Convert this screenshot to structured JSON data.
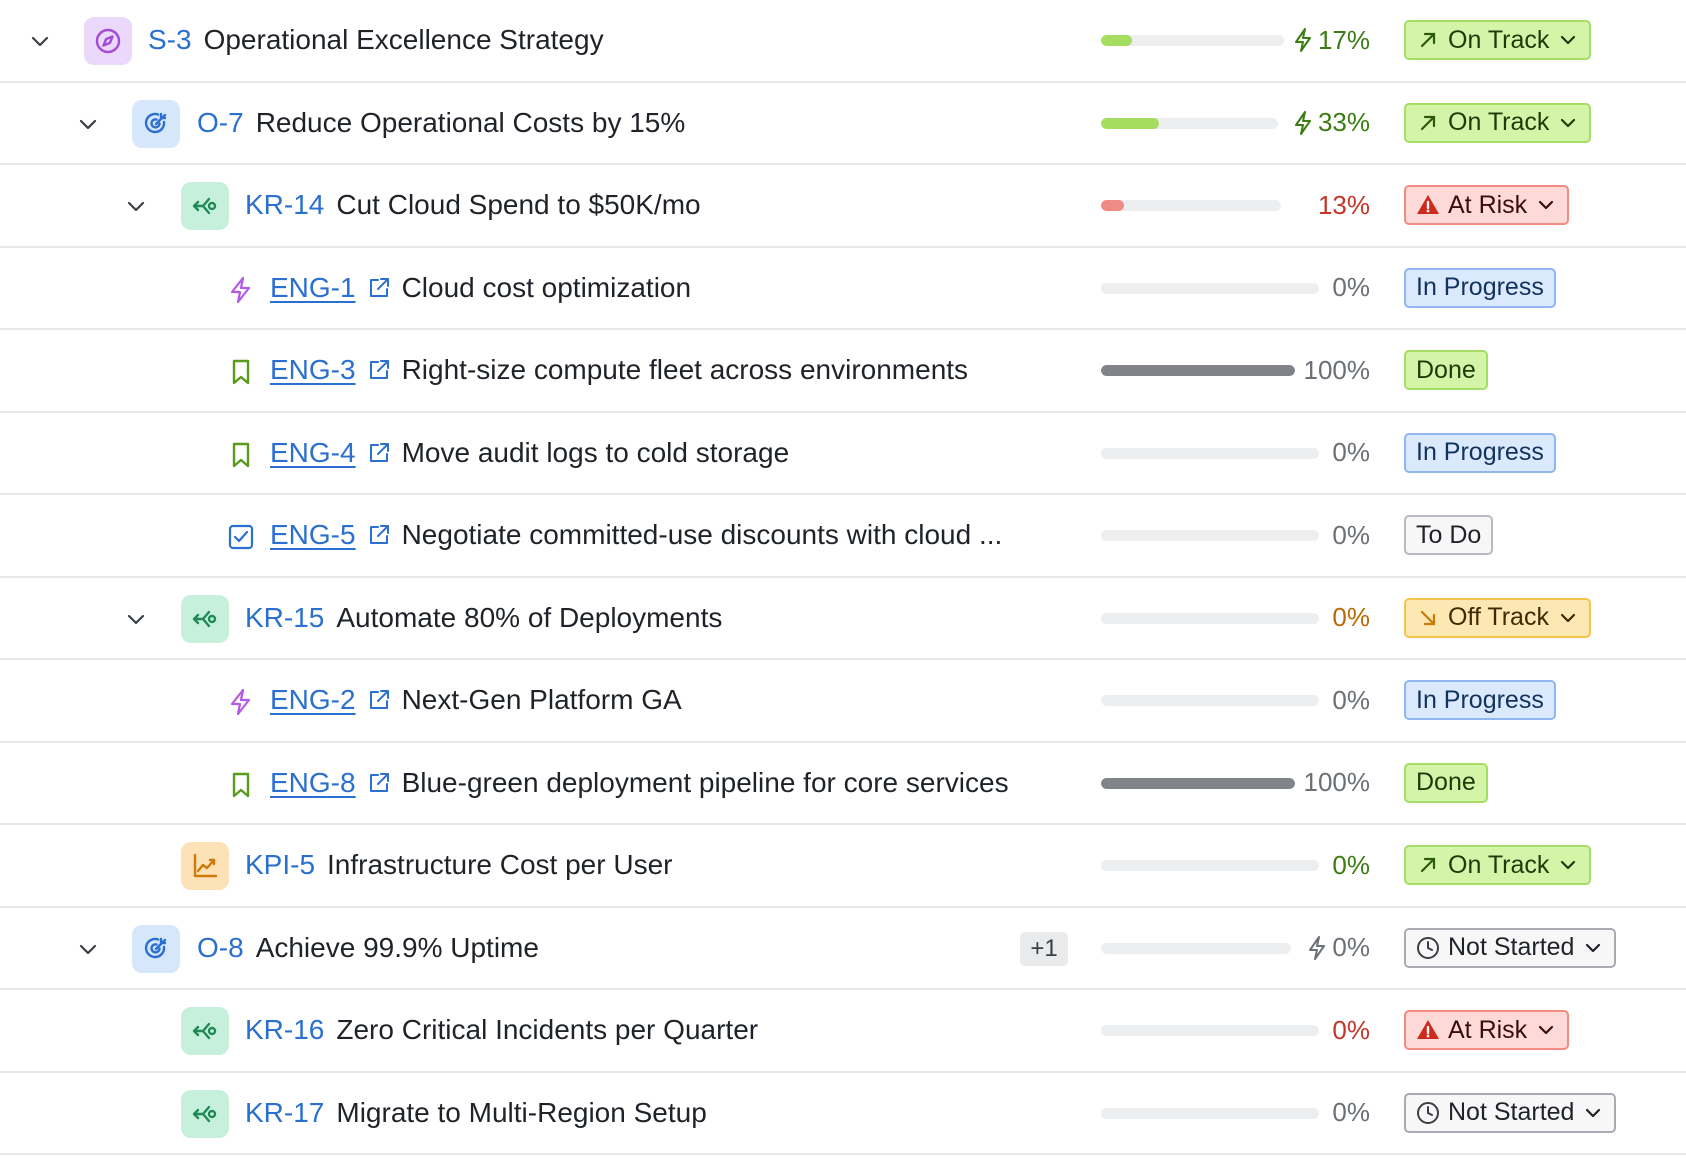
{
  "colors": {
    "key_link": "#2b6fd0",
    "progress_green": "#a4dd5f",
    "progress_red": "#f08a84",
    "progress_gray": "#808489",
    "progress_track": "#eceef0",
    "pct_green": "#3b7d12",
    "pct_red": "#c53629",
    "pct_orange": "#b86a05",
    "pct_gray": "#6b6f76"
  },
  "rows": [
    {
      "key": "S-3",
      "title": "Operational Excellence Strategy",
      "progress": 0.17,
      "percent": "17%",
      "status": "On Track",
      "icon": "compass-icon"
    },
    {
      "key": "O-7",
      "title": "Reduce Operational Costs by 15%",
      "progress": 0.33,
      "percent": "33%",
      "status": "On Track",
      "icon": "target-icon"
    },
    {
      "key": "KR-14",
      "title": "Cut Cloud Spend to $50K/mo",
      "progress": 0.13,
      "percent": "13%",
      "status": "At Risk",
      "icon": "key-result-icon"
    },
    {
      "key": "ENG-1",
      "title": "Cloud cost optimization",
      "progress": 0,
      "percent": "0%",
      "status": "In Progress",
      "icon": "epic-lightning-icon"
    },
    {
      "key": "ENG-3",
      "title": "Right-size compute fleet across environments",
      "progress": 1.0,
      "percent": "100%",
      "status": "Done",
      "icon": "story-bookmark-icon"
    },
    {
      "key": "ENG-4",
      "title": "Move audit logs to cold storage",
      "progress": 0,
      "percent": "0%",
      "status": "In Progress",
      "icon": "story-bookmark-icon"
    },
    {
      "key": "ENG-5",
      "title": "Negotiate committed-use discounts with cloud ...",
      "progress": 0,
      "percent": "0%",
      "status": "To Do",
      "icon": "task-checkbox-icon"
    },
    {
      "key": "KR-15",
      "title": "Automate 80% of Deployments",
      "progress": 0,
      "percent": "0%",
      "status": "Off Track",
      "icon": "key-result-icon"
    },
    {
      "key": "ENG-2",
      "title": "Next-Gen Platform GA",
      "progress": 0,
      "percent": "0%",
      "status": "In Progress",
      "icon": "epic-lightning-icon"
    },
    {
      "key": "ENG-8",
      "title": "Blue-green deployment pipeline for core services",
      "progress": 1.0,
      "percent": "100%",
      "status": "Done",
      "icon": "story-bookmark-icon"
    },
    {
      "key": "KPI-5",
      "title": "Infrastructure Cost per User",
      "progress": 0,
      "percent": "0%",
      "status": "On Track",
      "icon": "kpi-chart-icon"
    },
    {
      "key": "O-8",
      "title": "Achieve 99.9% Uptime",
      "progress": 0,
      "percent": "0%",
      "status": "Not Started",
      "icon": "target-icon",
      "extra_badge": "+1"
    },
    {
      "key": "KR-16",
      "title": "Zero Critical Incidents per Quarter",
      "progress": 0,
      "percent": "0%",
      "status": "At Risk",
      "icon": "key-result-icon"
    },
    {
      "key": "KR-17",
      "title": "Migrate to Multi-Region Setup",
      "progress": 0,
      "percent": "0%",
      "status": "Not Started",
      "icon": "key-result-icon"
    }
  ]
}
